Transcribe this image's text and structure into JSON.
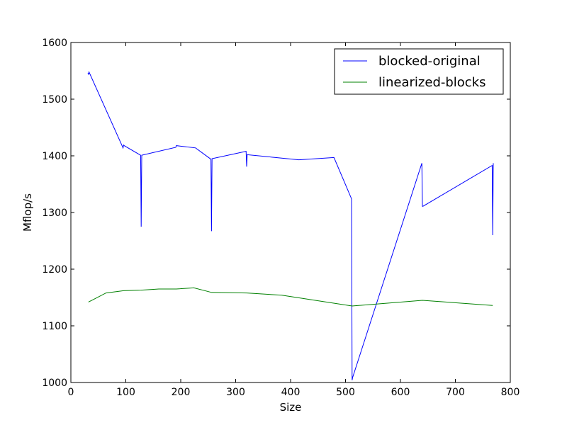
{
  "chart_data": {
    "type": "line",
    "title": "",
    "xlabel": "Size",
    "ylabel": "Mflop/s",
    "xlim": [
      0,
      800
    ],
    "ylim": [
      1000,
      1600
    ],
    "xticks": [
      0,
      100,
      200,
      300,
      400,
      500,
      600,
      700,
      800
    ],
    "yticks": [
      1000,
      1100,
      1200,
      1300,
      1400,
      1500,
      1600
    ],
    "grid": false,
    "legend_position": "top-right",
    "series": [
      {
        "name": "blocked-original",
        "color": "#0000ff",
        "x": [
          31,
          32,
          33,
          95,
          96,
          97,
          127,
          128,
          129,
          191,
          192,
          227,
          255,
          256,
          257,
          319,
          320,
          321,
          415,
          479,
          511,
          512,
          513,
          639,
          640,
          641,
          767,
          768,
          769
        ],
        "y": [
          1546,
          1544,
          1548,
          1414,
          1419,
          1418,
          1401,
          1275,
          1401,
          1415,
          1418,
          1414,
          1394,
          1267,
          1395,
          1408,
          1381,
          1402,
          1393,
          1397,
          1324,
          1004,
          1009,
          1387,
          1311,
          1311,
          1383,
          1260,
          1387
        ]
      },
      {
        "name": "linearized-blocks",
        "color": "#008000",
        "x": [
          32,
          64,
          96,
          128,
          160,
          192,
          224,
          256,
          320,
          384,
          512,
          640,
          768
        ],
        "y": [
          1142,
          1158,
          1162,
          1163,
          1165,
          1165,
          1167,
          1159,
          1158,
          1154,
          1135,
          1145,
          1136
        ]
      }
    ]
  }
}
